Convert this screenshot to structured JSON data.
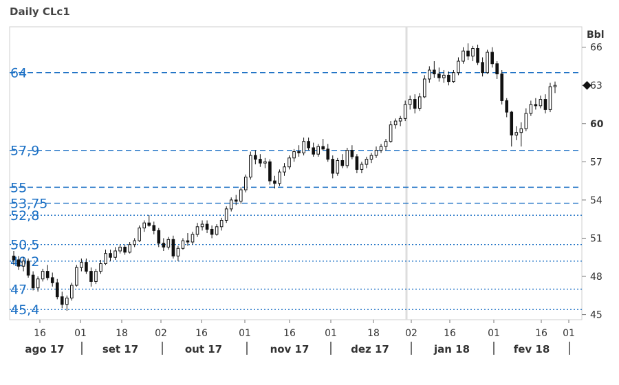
{
  "chart_data": {
    "type": "candlestick",
    "title": "Daily CLc1",
    "unit": "Bbl",
    "ylim": [
      44.6,
      67.6
    ],
    "y_ticks": [
      "66",
      "63",
      "60",
      "57",
      "54",
      "51",
      "48",
      "45"
    ],
    "y_ticks_bold": [
      "60"
    ],
    "last_marker": {
      "value": 63.0
    },
    "day_ticks": [
      "16",
      "01",
      "18",
      "02",
      "16",
      "01",
      "16",
      "01",
      "18",
      "02",
      "16",
      "01",
      "16",
      "01"
    ],
    "months": [
      "ago 17",
      "set 17",
      "out 17",
      "nov 17",
      "dez 17",
      "jan 18",
      "fev 18"
    ],
    "levels": [
      {
        "label": "64",
        "value": 64.0,
        "style": "dashed"
      },
      {
        "label": "57,9",
        "value": 57.9,
        "style": "dashed"
      },
      {
        "label": "55",
        "value": 55.0,
        "style": "dashed"
      },
      {
        "label": "53,75",
        "value": 53.75,
        "style": "dashed"
      },
      {
        "label": "52,8",
        "value": 52.8,
        "style": "dotted"
      },
      {
        "label": "50,5",
        "value": 50.5,
        "style": "dotted"
      },
      {
        "label": "49,2",
        "value": 49.2,
        "style": "dotted"
      },
      {
        "label": "47",
        "value": 47.0,
        "style": "dotted"
      },
      {
        "label": "45,4",
        "value": 45.4,
        "style": "dotted"
      }
    ],
    "candles": [
      [
        49.6,
        50.0,
        48.9,
        49.3
      ],
      [
        49.3,
        49.6,
        48.5,
        48.8
      ],
      [
        48.8,
        49.5,
        48.4,
        49.2
      ],
      [
        49.2,
        49.4,
        47.9,
        48.1
      ],
      [
        48.1,
        48.4,
        46.9,
        47.1
      ],
      [
        47.1,
        48.0,
        46.8,
        47.8
      ],
      [
        47.8,
        48.6,
        47.6,
        48.4
      ],
      [
        48.4,
        48.9,
        47.7,
        47.9
      ],
      [
        47.9,
        48.3,
        47.2,
        47.5
      ],
      [
        47.5,
        47.8,
        46.2,
        46.4
      ],
      [
        46.4,
        46.8,
        45.5,
        45.8
      ],
      [
        45.8,
        46.5,
        45.3,
        46.3
      ],
      [
        46.3,
        47.5,
        46.1,
        47.3
      ],
      [
        47.3,
        48.9,
        47.2,
        48.7
      ],
      [
        48.7,
        49.4,
        48.4,
        49.1
      ],
      [
        49.1,
        49.4,
        48.2,
        48.4
      ],
      [
        48.4,
        48.7,
        47.2,
        47.6
      ],
      [
        47.6,
        48.6,
        47.4,
        48.4
      ],
      [
        48.4,
        49.3,
        48.2,
        49.0
      ],
      [
        49.0,
        50.1,
        48.9,
        49.8
      ],
      [
        49.8,
        50.1,
        49.2,
        49.5
      ],
      [
        49.5,
        50.3,
        49.3,
        50.0
      ],
      [
        50.0,
        50.5,
        49.8,
        50.3
      ],
      [
        50.3,
        50.5,
        49.7,
        49.9
      ],
      [
        49.9,
        50.7,
        49.8,
        50.5
      ],
      [
        50.5,
        51.0,
        50.3,
        50.8
      ],
      [
        50.8,
        52.0,
        50.7,
        51.8
      ],
      [
        51.8,
        52.4,
        51.5,
        52.2
      ],
      [
        52.2,
        52.8,
        51.9,
        52.0
      ],
      [
        52.0,
        52.3,
        51.3,
        51.6
      ],
      [
        51.6,
        51.8,
        50.3,
        50.6
      ],
      [
        50.6,
        51.0,
        50.0,
        50.3
      ],
      [
        50.3,
        51.1,
        50.1,
        50.9
      ],
      [
        50.9,
        51.2,
        49.4,
        49.6
      ],
      [
        49.6,
        50.4,
        49.2,
        50.2
      ],
      [
        50.2,
        51.0,
        50.1,
        50.8
      ],
      [
        50.8,
        51.4,
        50.4,
        50.7
      ],
      [
        50.7,
        51.5,
        50.5,
        51.3
      ],
      [
        51.3,
        52.2,
        51.1,
        51.9
      ],
      [
        51.9,
        52.4,
        51.6,
        52.1
      ],
      [
        52.1,
        52.4,
        51.4,
        51.7
      ],
      [
        51.7,
        52.0,
        51.0,
        51.3
      ],
      [
        51.3,
        52.1,
        51.2,
        51.9
      ],
      [
        51.9,
        52.6,
        51.6,
        52.4
      ],
      [
        52.4,
        53.5,
        52.2,
        53.3
      ],
      [
        53.3,
        54.2,
        53.1,
        54.0
      ],
      [
        54.0,
        54.4,
        53.6,
        53.9
      ],
      [
        53.9,
        55.0,
        53.7,
        54.8
      ],
      [
        54.8,
        56.0,
        54.6,
        55.8
      ],
      [
        55.8,
        57.8,
        55.6,
        57.5
      ],
      [
        57.5,
        57.9,
        56.8,
        57.2
      ],
      [
        57.2,
        57.6,
        56.6,
        56.9
      ],
      [
        56.9,
        57.3,
        56.5,
        57.0
      ],
      [
        57.0,
        57.2,
        55.2,
        55.5
      ],
      [
        55.5,
        55.9,
        54.9,
        55.3
      ],
      [
        55.3,
        56.4,
        55.1,
        56.2
      ],
      [
        56.2,
        56.9,
        55.9,
        56.6
      ],
      [
        56.6,
        57.5,
        56.4,
        57.3
      ],
      [
        57.3,
        58.0,
        57.0,
        57.8
      ],
      [
        57.8,
        58.3,
        57.4,
        57.7
      ],
      [
        57.7,
        58.9,
        57.5,
        58.6
      ],
      [
        58.6,
        58.9,
        57.9,
        58.1
      ],
      [
        58.1,
        58.5,
        57.4,
        57.6
      ],
      [
        57.6,
        58.4,
        57.4,
        58.2
      ],
      [
        58.2,
        58.8,
        57.9,
        58.0
      ],
      [
        58.0,
        58.4,
        57.0,
        57.2
      ],
      [
        57.2,
        57.5,
        55.7,
        56.1
      ],
      [
        56.1,
        57.3,
        55.9,
        57.1
      ],
      [
        57.1,
        57.6,
        56.5,
        56.7
      ],
      [
        56.7,
        58.1,
        56.5,
        57.9
      ],
      [
        57.9,
        58.3,
        57.2,
        57.4
      ],
      [
        57.4,
        57.6,
        56.1,
        56.4
      ],
      [
        56.4,
        57.0,
        56.1,
        56.8
      ],
      [
        56.8,
        57.4,
        56.5,
        57.2
      ],
      [
        57.2,
        57.7,
        56.9,
        57.5
      ],
      [
        57.5,
        58.2,
        57.3,
        57.9
      ],
      [
        57.9,
        58.4,
        57.7,
        58.2
      ],
      [
        58.2,
        58.8,
        57.9,
        58.6
      ],
      [
        58.6,
        60.2,
        58.5,
        59.9
      ],
      [
        59.9,
        60.4,
        59.6,
        60.2
      ],
      [
        60.2,
        60.6,
        59.8,
        60.4
      ],
      [
        60.4,
        61.8,
        60.2,
        61.5
      ],
      [
        61.5,
        62.2,
        61.1,
        61.9
      ],
      [
        61.9,
        62.3,
        60.8,
        61.2
      ],
      [
        61.2,
        62.4,
        61.0,
        62.1
      ],
      [
        62.1,
        63.8,
        62.0,
        63.5
      ],
      [
        63.5,
        64.5,
        63.2,
        64.2
      ],
      [
        64.2,
        64.9,
        63.6,
        63.9
      ],
      [
        63.9,
        64.4,
        63.3,
        63.6
      ],
      [
        63.6,
        64.2,
        63.2,
        63.8
      ],
      [
        63.8,
        64.1,
        63.0,
        63.3
      ],
      [
        63.3,
        64.2,
        63.2,
        64.0
      ],
      [
        64.0,
        65.2,
        63.8,
        64.9
      ],
      [
        64.9,
        66.0,
        64.7,
        65.7
      ],
      [
        65.7,
        66.3,
        65.0,
        65.3
      ],
      [
        65.3,
        66.1,
        64.9,
        65.9
      ],
      [
        65.9,
        66.2,
        64.6,
        64.8
      ],
      [
        64.8,
        65.2,
        63.7,
        64.0
      ],
      [
        64.0,
        65.8,
        63.9,
        65.6
      ],
      [
        65.6,
        66.0,
        64.4,
        64.7
      ],
      [
        64.7,
        64.9,
        63.5,
        63.9
      ],
      [
        63.9,
        64.2,
        61.5,
        61.8
      ],
      [
        61.8,
        62.0,
        60.5,
        60.9
      ],
      [
        60.9,
        61.0,
        58.2,
        59.1
      ],
      [
        59.1,
        59.8,
        58.7,
        59.3
      ],
      [
        59.3,
        60.1,
        58.2,
        59.6
      ],
      [
        59.6,
        61.2,
        59.4,
        60.8
      ],
      [
        60.8,
        61.8,
        60.6,
        61.5
      ],
      [
        61.5,
        62.0,
        61.1,
        61.4
      ],
      [
        61.4,
        62.2,
        61.2,
        61.9
      ],
      [
        61.9,
        62.3,
        60.8,
        61.1
      ],
      [
        61.1,
        63.2,
        60.9,
        62.9
      ],
      [
        62.9,
        63.3,
        62.4,
        63.0
      ]
    ]
  }
}
